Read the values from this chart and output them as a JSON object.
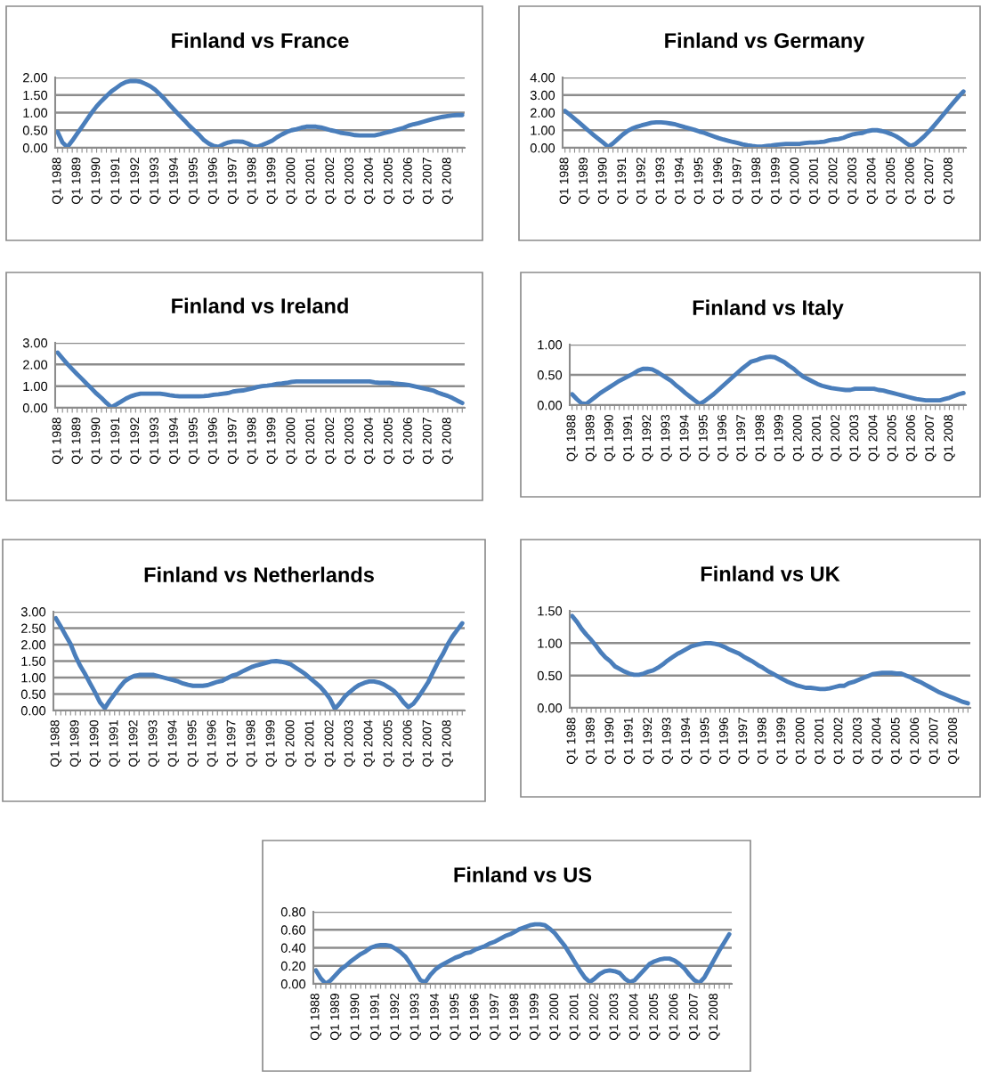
{
  "chart_data": [
    {
      "type": "line",
      "title": "Finland vs France",
      "categories": [
        "Q1 1988",
        null,
        null,
        null,
        "Q1 1989",
        null,
        null,
        null,
        "Q1 1990",
        null,
        null,
        null,
        "Q1 1991",
        null,
        null,
        null,
        "Q1 1992",
        null,
        null,
        null,
        "Q1 1993",
        null,
        null,
        null,
        "Q1 1994",
        null,
        null,
        null,
        "Q1 1995",
        null,
        null,
        null,
        "Q1 1996",
        null,
        null,
        null,
        "Q1 1997",
        null,
        null,
        null,
        "Q1 1998",
        null,
        null,
        null,
        "Q1 1999",
        null,
        null,
        null,
        "Q1 2000",
        null,
        null,
        null,
        "Q1 2001",
        null,
        null,
        null,
        "Q1 2002",
        null,
        null,
        null,
        "Q1 2003",
        null,
        null,
        null,
        "Q1 2004",
        null,
        null,
        null,
        "Q1 2005",
        null,
        null,
        null,
        "Q1 2006",
        null,
        null,
        null,
        "Q1 2007",
        null,
        null,
        null,
        "Q1 2008",
        null,
        null,
        null
      ],
      "series": [
        {
          "color": "#4a7ebb",
          "values": [
            0.45,
            0.15,
            0.02,
            0.2,
            0.4,
            0.6,
            0.8,
            1.0,
            1.18,
            1.33,
            1.47,
            1.6,
            1.7,
            1.8,
            1.87,
            1.9,
            1.9,
            1.88,
            1.82,
            1.75,
            1.65,
            1.52,
            1.38,
            1.22,
            1.07,
            0.92,
            0.78,
            0.63,
            0.5,
            0.37,
            0.22,
            0.12,
            0.05,
            0.03,
            0.1,
            0.15,
            0.18,
            0.18,
            0.17,
            0.12,
            0.05,
            0.03,
            0.08,
            0.14,
            0.2,
            0.3,
            0.38,
            0.45,
            0.5,
            0.53,
            0.57,
            0.6,
            0.6,
            0.6,
            0.58,
            0.54,
            0.5,
            0.47,
            0.43,
            0.41,
            0.39,
            0.36,
            0.35,
            0.35,
            0.35,
            0.35,
            0.38,
            0.42,
            0.45,
            0.49,
            0.53,
            0.57,
            0.63,
            0.67,
            0.7,
            0.74,
            0.78,
            0.82,
            0.85,
            0.88,
            0.9,
            0.92,
            0.93,
            0.93
          ]
        }
      ],
      "ylim": [
        0,
        2
      ],
      "yticks": [
        {
          "value": 0,
          "label": "0.00"
        },
        {
          "value": 0.5,
          "label": "0.50"
        },
        {
          "value": 1,
          "label": "1.00"
        },
        {
          "value": 1.5,
          "label": "1.50"
        },
        {
          "value": 2,
          "label": "2.00"
        }
      ],
      "grid": "y",
      "marker": "none",
      "line_style": "solid"
    },
    {
      "type": "line",
      "title": "Finland vs Germany",
      "categories": [
        "Q1 1988",
        null,
        null,
        null,
        "Q1 1989",
        null,
        null,
        null,
        "Q1 1990",
        null,
        null,
        null,
        "Q1 1991",
        null,
        null,
        null,
        "Q1 1992",
        null,
        null,
        null,
        "Q1 1993",
        null,
        null,
        null,
        "Q1 1994",
        null,
        null,
        null,
        "Q1 1995",
        null,
        null,
        null,
        "Q1 1996",
        null,
        null,
        null,
        "Q1 1997",
        null,
        null,
        null,
        "Q1 1998",
        null,
        null,
        null,
        "Q1 1999",
        null,
        null,
        null,
        "Q1 2000",
        null,
        null,
        null,
        "Q1 2001",
        null,
        null,
        null,
        "Q1 2002",
        null,
        null,
        null,
        "Q1 2003",
        null,
        null,
        null,
        "Q1 2004",
        null,
        null,
        null,
        "Q1 2005",
        null,
        null,
        null,
        "Q1 2006",
        null,
        null,
        null,
        "Q1 2007",
        null,
        null,
        null,
        "Q1 2008",
        null,
        null,
        null
      ],
      "series": [
        {
          "color": "#4a7ebb",
          "values": [
            2.1,
            1.88,
            1.65,
            1.42,
            1.18,
            0.95,
            0.72,
            0.5,
            0.28,
            0.05,
            0.25,
            0.5,
            0.75,
            0.95,
            1.1,
            1.2,
            1.28,
            1.35,
            1.42,
            1.45,
            1.45,
            1.42,
            1.38,
            1.33,
            1.25,
            1.17,
            1.1,
            1.02,
            0.92,
            0.85,
            0.75,
            0.65,
            0.55,
            0.47,
            0.4,
            0.33,
            0.27,
            0.2,
            0.14,
            0.1,
            0.07,
            0.07,
            0.1,
            0.13,
            0.17,
            0.2,
            0.22,
            0.22,
            0.22,
            0.23,
            0.27,
            0.3,
            0.3,
            0.32,
            0.35,
            0.42,
            0.47,
            0.5,
            0.57,
            0.68,
            0.77,
            0.82,
            0.85,
            0.95,
            1.0,
            1.0,
            0.95,
            0.88,
            0.78,
            0.65,
            0.48,
            0.28,
            0.1,
            0.22,
            0.45,
            0.7,
            0.98,
            1.3,
            1.62,
            1.95,
            2.28,
            2.6,
            2.92,
            3.2
          ]
        }
      ],
      "ylim": [
        0,
        4
      ],
      "yticks": [
        {
          "value": 0,
          "label": "0.00"
        },
        {
          "value": 1,
          "label": "1.00"
        },
        {
          "value": 2,
          "label": "2.00"
        },
        {
          "value": 3,
          "label": "3.00"
        },
        {
          "value": 4,
          "label": "4.00"
        }
      ],
      "grid": "y",
      "marker": "none",
      "line_style": "solid"
    },
    {
      "type": "line",
      "title": "Finland vs Ireland",
      "categories": [
        "Q1 1988",
        null,
        null,
        null,
        "Q1 1989",
        null,
        null,
        null,
        "Q1 1990",
        null,
        null,
        null,
        "Q1 1991",
        null,
        null,
        null,
        "Q1 1992",
        null,
        null,
        null,
        "Q1 1993",
        null,
        null,
        null,
        "Q1 1994",
        null,
        null,
        null,
        "Q1 1995",
        null,
        null,
        null,
        "Q1 1996",
        null,
        null,
        null,
        "Q1 1997",
        null,
        null,
        null,
        "Q1 1998",
        null,
        null,
        null,
        "Q1 1999",
        null,
        null,
        null,
        "Q1 2000",
        null,
        null,
        null,
        "Q1 2001",
        null,
        null,
        null,
        "Q1 2002",
        null,
        null,
        null,
        "Q1 2003",
        null,
        null,
        null,
        "Q1 2004",
        null,
        null,
        null,
        "Q1 2005",
        null,
        null,
        null,
        "Q1 2006",
        null,
        null,
        null,
        "Q1 2007",
        null,
        null,
        null,
        "Q1 2008",
        null,
        null,
        null
      ],
      "series": [
        {
          "color": "#4a7ebb",
          "values": [
            2.55,
            2.28,
            2.02,
            1.78,
            1.55,
            1.33,
            1.1,
            0.88,
            0.65,
            0.45,
            0.23,
            0.03,
            0.15,
            0.28,
            0.42,
            0.53,
            0.6,
            0.65,
            0.65,
            0.65,
            0.65,
            0.65,
            0.62,
            0.58,
            0.55,
            0.53,
            0.53,
            0.53,
            0.53,
            0.53,
            0.54,
            0.56,
            0.6,
            0.62,
            0.65,
            0.68,
            0.75,
            0.78,
            0.8,
            0.85,
            0.9,
            0.96,
            1.0,
            1.02,
            1.05,
            1.1,
            1.12,
            1.15,
            1.2,
            1.22,
            1.22,
            1.22,
            1.22,
            1.22,
            1.22,
            1.22,
            1.22,
            1.22,
            1.22,
            1.22,
            1.22,
            1.22,
            1.22,
            1.22,
            1.22,
            1.18,
            1.15,
            1.15,
            1.15,
            1.12,
            1.1,
            1.08,
            1.05,
            1.0,
            0.95,
            0.9,
            0.85,
            0.8,
            0.7,
            0.62,
            0.55,
            0.45,
            0.33,
            0.22
          ]
        }
      ],
      "ylim": [
        0,
        3
      ],
      "yticks": [
        {
          "value": 0,
          "label": "0.00"
        },
        {
          "value": 1,
          "label": "1.00"
        },
        {
          "value": 2,
          "label": "2.00"
        },
        {
          "value": 3,
          "label": "3.00"
        }
      ],
      "grid": "y",
      "marker": "none",
      "line_style": "solid"
    },
    {
      "type": "line",
      "title": "Finland vs Italy",
      "categories": [
        "Q1 1988",
        null,
        null,
        null,
        "Q1 1989",
        null,
        null,
        null,
        "Q1 1990",
        null,
        null,
        null,
        "Q1 1991",
        null,
        null,
        null,
        "Q1 1992",
        null,
        null,
        null,
        "Q1 1993",
        null,
        null,
        null,
        "Q1 1994",
        null,
        null,
        null,
        "Q1 1995",
        null,
        null,
        null,
        "Q1 1996",
        null,
        null,
        null,
        "Q1 1997",
        null,
        null,
        null,
        "Q1 1998",
        null,
        null,
        null,
        "Q1 1999",
        null,
        null,
        null,
        "Q1 2000",
        null,
        null,
        null,
        "Q1 2001",
        null,
        null,
        null,
        "Q1 2002",
        null,
        null,
        null,
        "Q1 2003",
        null,
        null,
        null,
        "Q1 2004",
        null,
        null,
        null,
        "Q1 2005",
        null,
        null,
        null,
        "Q1 2006",
        null,
        null,
        null,
        "Q1 2007",
        null,
        null,
        null,
        "Q1 2008",
        null,
        null,
        null
      ],
      "series": [
        {
          "color": "#4a7ebb",
          "values": [
            0.18,
            0.1,
            0.03,
            0.02,
            0.08,
            0.14,
            0.2,
            0.25,
            0.3,
            0.35,
            0.4,
            0.44,
            0.48,
            0.52,
            0.57,
            0.6,
            0.6,
            0.59,
            0.55,
            0.5,
            0.45,
            0.4,
            0.33,
            0.27,
            0.2,
            0.14,
            0.08,
            0.02,
            0.06,
            0.12,
            0.18,
            0.25,
            0.32,
            0.39,
            0.46,
            0.53,
            0.6,
            0.66,
            0.72,
            0.74,
            0.77,
            0.79,
            0.8,
            0.79,
            0.75,
            0.71,
            0.65,
            0.6,
            0.53,
            0.47,
            0.43,
            0.39,
            0.35,
            0.32,
            0.3,
            0.28,
            0.27,
            0.26,
            0.25,
            0.25,
            0.27,
            0.27,
            0.27,
            0.27,
            0.27,
            0.25,
            0.24,
            0.22,
            0.2,
            0.18,
            0.16,
            0.14,
            0.12,
            0.1,
            0.09,
            0.08,
            0.08,
            0.08,
            0.08,
            0.1,
            0.12,
            0.15,
            0.18,
            0.2
          ]
        }
      ],
      "ylim": [
        0,
        1
      ],
      "yticks": [
        {
          "value": 0,
          "label": "0.00"
        },
        {
          "value": 0.5,
          "label": "0.50"
        },
        {
          "value": 1,
          "label": "1.00"
        }
      ],
      "grid": "y",
      "marker": "none",
      "line_style": "solid"
    },
    {
      "type": "line",
      "title": "Finland vs Netherlands",
      "categories": [
        "Q1 1988",
        null,
        null,
        null,
        "Q1 1989",
        null,
        null,
        null,
        "Q1 1990",
        null,
        null,
        null,
        "Q1 1991",
        null,
        null,
        null,
        "Q1 1992",
        null,
        null,
        null,
        "Q1 1993",
        null,
        null,
        null,
        "Q1 1994",
        null,
        null,
        null,
        "Q1 1995",
        null,
        null,
        null,
        "Q1 1996",
        null,
        null,
        null,
        "Q1 1997",
        null,
        null,
        null,
        "Q1 1998",
        null,
        null,
        null,
        "Q1 1999",
        null,
        null,
        null,
        "Q1 2000",
        null,
        null,
        null,
        "Q1 2001",
        null,
        null,
        null,
        "Q1 2002",
        null,
        null,
        null,
        "Q1 2003",
        null,
        null,
        null,
        "Q1 2004",
        null,
        null,
        null,
        "Q1 2005",
        null,
        null,
        null,
        "Q1 2006",
        null,
        null,
        null,
        "Q1 2007",
        null,
        null,
        null,
        "Q1 2008",
        null,
        null,
        null
      ],
      "series": [
        {
          "color": "#4a7ebb",
          "values": [
            2.8,
            2.55,
            2.28,
            2.02,
            1.65,
            1.35,
            1.1,
            0.82,
            0.55,
            0.25,
            0.07,
            0.3,
            0.5,
            0.7,
            0.88,
            0.98,
            1.05,
            1.08,
            1.08,
            1.08,
            1.08,
            1.04,
            1.0,
            0.96,
            0.92,
            0.88,
            0.82,
            0.78,
            0.75,
            0.75,
            0.75,
            0.77,
            0.82,
            0.87,
            0.9,
            0.98,
            1.06,
            1.1,
            1.18,
            1.25,
            1.32,
            1.37,
            1.41,
            1.45,
            1.49,
            1.5,
            1.48,
            1.45,
            1.4,
            1.3,
            1.2,
            1.1,
            0.97,
            0.85,
            0.72,
            0.55,
            0.35,
            0.05,
            0.22,
            0.42,
            0.56,
            0.68,
            0.78,
            0.84,
            0.88,
            0.88,
            0.85,
            0.79,
            0.7,
            0.6,
            0.45,
            0.25,
            0.1,
            0.2,
            0.4,
            0.62,
            0.85,
            1.15,
            1.45,
            1.7,
            2.0,
            2.25,
            2.45,
            2.65
          ]
        }
      ],
      "ylim": [
        0,
        3
      ],
      "yticks": [
        {
          "value": 0,
          "label": "0.00"
        },
        {
          "value": 0.5,
          "label": "0.50"
        },
        {
          "value": 1,
          "label": "1.00"
        },
        {
          "value": 1.5,
          "label": "1.50"
        },
        {
          "value": 2,
          "label": "2.00"
        },
        {
          "value": 2.5,
          "label": "2.50"
        },
        {
          "value": 3,
          "label": "3.00"
        }
      ],
      "grid": "y",
      "marker": "none",
      "line_style": "solid"
    },
    {
      "type": "line",
      "title": "Finland vs UK",
      "categories": [
        "Q1 1988",
        null,
        null,
        null,
        "Q1 1989",
        null,
        null,
        null,
        "Q1 1990",
        null,
        null,
        null,
        "Q1 1991",
        null,
        null,
        null,
        "Q1 1992",
        null,
        null,
        null,
        "Q1 1993",
        null,
        null,
        null,
        "Q1 1994",
        null,
        null,
        null,
        "Q1 1995",
        null,
        null,
        null,
        "Q1 1996",
        null,
        null,
        null,
        "Q1 1997",
        null,
        null,
        null,
        "Q1 1998",
        null,
        null,
        null,
        "Q1 1999",
        null,
        null,
        null,
        "Q1 2000",
        null,
        null,
        null,
        "Q1 2001",
        null,
        null,
        null,
        "Q1 2002",
        null,
        null,
        null,
        "Q1 2003",
        null,
        null,
        null,
        "Q1 2004",
        null,
        null,
        null,
        "Q1 2005",
        null,
        null,
        null,
        "Q1 2006",
        null,
        null,
        null,
        "Q1 2007",
        null,
        null,
        null,
        "Q1 2008",
        null,
        null,
        null
      ],
      "series": [
        {
          "color": "#4a7ebb",
          "values": [
            1.42,
            1.33,
            1.22,
            1.13,
            1.05,
            0.96,
            0.86,
            0.78,
            0.72,
            0.64,
            0.6,
            0.56,
            0.53,
            0.51,
            0.51,
            0.53,
            0.56,
            0.58,
            0.62,
            0.67,
            0.73,
            0.78,
            0.83,
            0.87,
            0.91,
            0.95,
            0.97,
            0.99,
            1.0,
            1.0,
            0.99,
            0.97,
            0.94,
            0.9,
            0.87,
            0.84,
            0.79,
            0.75,
            0.71,
            0.66,
            0.62,
            0.57,
            0.53,
            0.49,
            0.45,
            0.41,
            0.38,
            0.35,
            0.33,
            0.31,
            0.31,
            0.3,
            0.29,
            0.29,
            0.3,
            0.32,
            0.34,
            0.34,
            0.38,
            0.4,
            0.43,
            0.46,
            0.49,
            0.52,
            0.53,
            0.54,
            0.54,
            0.54,
            0.53,
            0.53,
            0.5,
            0.47,
            0.43,
            0.4,
            0.36,
            0.32,
            0.28,
            0.24,
            0.21,
            0.18,
            0.15,
            0.12,
            0.09,
            0.07
          ]
        }
      ],
      "ylim": [
        0,
        1.5
      ],
      "yticks": [
        {
          "value": 0,
          "label": "0.00"
        },
        {
          "value": 0.5,
          "label": "0.50"
        },
        {
          "value": 1,
          "label": "1.00"
        },
        {
          "value": 1.5,
          "label": "1.50"
        }
      ],
      "grid": "y",
      "marker": "none",
      "line_style": "solid"
    },
    {
      "type": "line",
      "title": "Finland vs US",
      "categories": [
        "Q1 1988",
        null,
        null,
        null,
        "Q1 1989",
        null,
        null,
        null,
        "Q1 1990",
        null,
        null,
        null,
        "Q1 1991",
        null,
        null,
        null,
        "Q1 1992",
        null,
        null,
        null,
        "Q1 1993",
        null,
        null,
        null,
        "Q1 1994",
        null,
        null,
        null,
        "Q1 1995",
        null,
        null,
        null,
        "Q1 1996",
        null,
        null,
        null,
        "Q1 1997",
        null,
        null,
        null,
        "Q1 1998",
        null,
        null,
        null,
        "Q1 1999",
        null,
        null,
        null,
        "Q1 2000",
        null,
        null,
        null,
        "Q1 2001",
        null,
        null,
        null,
        "Q1 2002",
        null,
        null,
        null,
        "Q1 2003",
        null,
        null,
        null,
        "Q1 2004",
        null,
        null,
        null,
        "Q1 2005",
        null,
        null,
        null,
        "Q1 2006",
        null,
        null,
        null,
        "Q1 2007",
        null,
        null,
        null,
        "Q1 2008",
        null,
        null,
        null
      ],
      "series": [
        {
          "color": "#4a7ebb",
          "values": [
            0.15,
            0.06,
            0.0,
            0.04,
            0.1,
            0.16,
            0.2,
            0.25,
            0.29,
            0.33,
            0.36,
            0.4,
            0.42,
            0.43,
            0.43,
            0.42,
            0.39,
            0.35,
            0.3,
            0.22,
            0.13,
            0.04,
            0.02,
            0.1,
            0.16,
            0.2,
            0.23,
            0.26,
            0.29,
            0.31,
            0.34,
            0.35,
            0.38,
            0.4,
            0.42,
            0.45,
            0.47,
            0.5,
            0.53,
            0.55,
            0.58,
            0.61,
            0.63,
            0.65,
            0.66,
            0.66,
            0.65,
            0.61,
            0.56,
            0.49,
            0.42,
            0.33,
            0.24,
            0.15,
            0.07,
            0.02,
            0.06,
            0.11,
            0.14,
            0.15,
            0.14,
            0.12,
            0.06,
            0.02,
            0.04,
            0.1,
            0.16,
            0.22,
            0.25,
            0.27,
            0.28,
            0.28,
            0.26,
            0.22,
            0.17,
            0.1,
            0.04,
            0.01,
            0.07,
            0.17,
            0.27,
            0.37,
            0.46,
            0.55
          ]
        }
      ],
      "ylim": [
        0,
        0.8
      ],
      "yticks": [
        {
          "value": 0,
          "label": "0.00"
        },
        {
          "value": 0.2,
          "label": "0.20"
        },
        {
          "value": 0.4,
          "label": "0.40"
        },
        {
          "value": 0.6,
          "label": "0.60"
        },
        {
          "value": 0.8,
          "label": "0.80"
        }
      ],
      "grid": "y",
      "marker": "none",
      "line_style": "solid"
    }
  ]
}
